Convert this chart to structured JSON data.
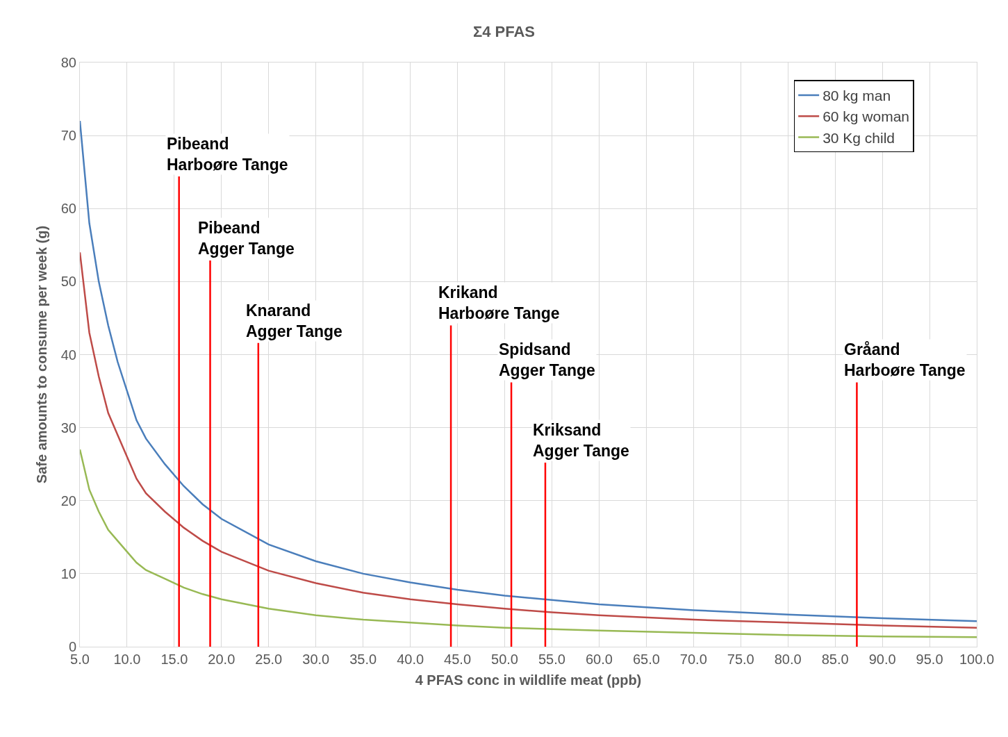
{
  "chart_data": {
    "type": "line",
    "title": "Σ4 PFAS",
    "xlabel": "4 PFAS conc in wildlife meat (ppb)",
    "ylabel": "Safe amounts to consume per week (g)",
    "x": [
      5,
      6,
      7,
      8,
      9,
      10,
      11,
      12,
      14,
      16,
      18,
      20,
      25,
      30,
      35,
      40,
      45,
      50,
      55,
      60,
      70,
      80,
      90,
      100
    ],
    "series": [
      {
        "name": "80 kg man",
        "color": "#4a7ebb",
        "values": [
          72,
          58,
          50,
          44,
          39,
          35,
          31,
          28.5,
          25,
          22,
          19.5,
          17.5,
          14,
          11.7,
          10,
          8.8,
          7.8,
          7,
          6.4,
          5.8,
          5,
          4.4,
          3.9,
          3.5
        ]
      },
      {
        "name": "60 kg woman",
        "color": "#be4b48",
        "values": [
          54,
          43,
          37,
          32,
          29,
          26,
          23,
          21,
          18.5,
          16.3,
          14.5,
          13,
          10.4,
          8.7,
          7.4,
          6.5,
          5.8,
          5.2,
          4.7,
          4.3,
          3.7,
          3.3,
          2.9,
          2.6
        ]
      },
      {
        "name": "30 Kg child",
        "color": "#98b954",
        "values": [
          27,
          21.5,
          18.5,
          16,
          14.5,
          13,
          11.5,
          10.5,
          9.3,
          8.1,
          7.2,
          6.5,
          5.2,
          4.3,
          3.7,
          3.3,
          2.9,
          2.6,
          2.4,
          2.2,
          1.9,
          1.6,
          1.4,
          1.3
        ]
      },
      {
        "type": "line",
        "color": "#ff0000",
        "x": [
          15.5,
          15.5,
          null,
          18.8,
          18.8,
          null,
          23.9,
          23.9,
          null,
          44.3,
          44.3,
          null,
          50.7,
          50.7,
          null,
          54.3,
          54.3,
          null,
          87.3,
          87.3
        ],
        "values": [
          0,
          64.4,
          null,
          0,
          52.9,
          null,
          0,
          41.6,
          null,
          0,
          44,
          null,
          0,
          36.2,
          null,
          0,
          25.2,
          null,
          0,
          36.2
        ]
      }
    ],
    "annotations": [
      {
        "text": "Pibeand\nHarboøre Tange",
        "x": 15.5,
        "y": 64.4
      },
      {
        "text": "Pibeand\nAgger Tange",
        "x": 18.8,
        "y": 52.9
      },
      {
        "text": "Knarand\nAgger Tange",
        "x": 23.9,
        "y": 41.6
      },
      {
        "text": "Krikand\nHarboøre Tange",
        "x": 44.3,
        "y": 44
      },
      {
        "text": "Spidsand\nAgger Tange",
        "x": 50.7,
        "y": 36.2
      },
      {
        "text": "Kriksand\nAgger Tange",
        "x": 54.3,
        "y": 25.2
      },
      {
        "text": "Gråand\nHarboøre Tange",
        "x": 87.3,
        "y": 36.2
      }
    ],
    "xlim": [
      5,
      100
    ],
    "xticks": [
      {
        "value": 5,
        "label": "5.0"
      },
      {
        "value": 10,
        "label": "10.0"
      },
      {
        "value": 15,
        "label": "15.0"
      },
      {
        "value": 20,
        "label": "20.0"
      },
      {
        "value": 25,
        "label": "25.0"
      },
      {
        "value": 30,
        "label": "30.0"
      },
      {
        "value": 35,
        "label": "35.0"
      },
      {
        "value": 40,
        "label": "40.0"
      },
      {
        "value": 45,
        "label": "45.0"
      },
      {
        "value": 50,
        "label": "50.0"
      },
      {
        "value": 55,
        "label": "55.0"
      },
      {
        "value": 60,
        "label": "60.0"
      },
      {
        "value": 65,
        "label": "65.0"
      },
      {
        "value": 70,
        "label": "70.0"
      },
      {
        "value": 75,
        "label": "75.0"
      },
      {
        "value": 80,
        "label": "80.0"
      },
      {
        "value": 85,
        "label": "85.0"
      },
      {
        "value": 90,
        "label": "90.0"
      },
      {
        "value": 95,
        "label": "95.0"
      },
      {
        "value": 100,
        "label": "100.0"
      }
    ],
    "ylim": [
      0,
      80
    ],
    "yticks": [
      0,
      10,
      20,
      30,
      40,
      50,
      60,
      70,
      80
    ],
    "grid": true,
    "legend": "top right",
    "marker": "none",
    "line_style": "solid"
  }
}
